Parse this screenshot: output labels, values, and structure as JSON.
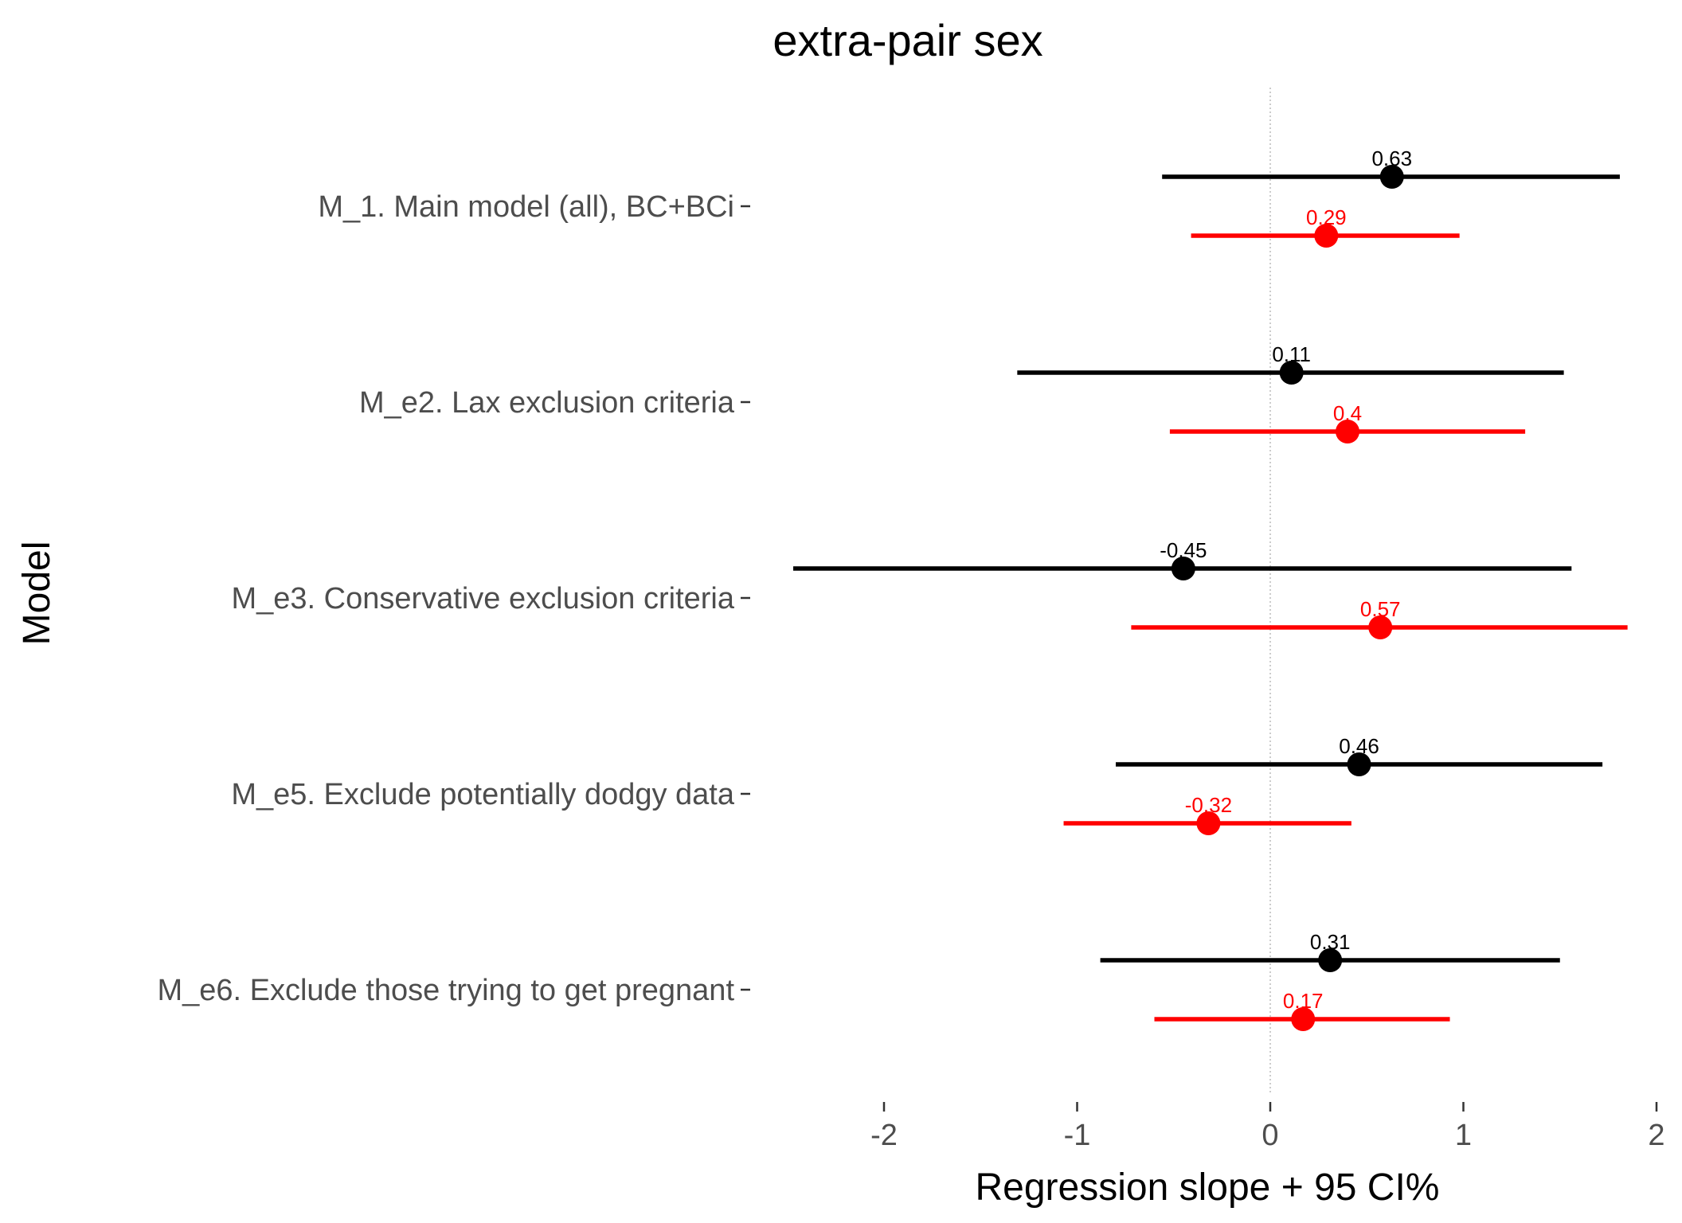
{
  "chart_data": {
    "type": "scatter",
    "subtype": "forest-plot (point estimate with 95% CI bars)",
    "title": "extra-pair sex",
    "xlabel": "Regression slope + 95 CI%",
    "ylabel": "Model",
    "xlim": [
      -2.55,
      2.0
    ],
    "x_ticks": [
      -2,
      -1,
      0,
      1,
      2
    ],
    "x_tick_labels": [
      "-2",
      "-1",
      "0",
      "1",
      "2"
    ],
    "reference_line_x": 0,
    "grid": false,
    "legend": "none",
    "categories": [
      "M_1. Main model (all), BC+BCi",
      "M_e2. Lax exclusion criteria",
      "M_e3. Conservative exclusion criteria",
      "M_e5. Exclude potentially dodgy data",
      "M_e6. Exclude those trying to get pregnant"
    ],
    "series": [
      {
        "color": "#000000",
        "estimates": [
          0.63,
          0.11,
          -0.45,
          0.46,
          0.31
        ],
        "lower": [
          -0.56,
          -1.31,
          -2.47,
          -0.8,
          -0.88
        ],
        "upper": [
          1.81,
          1.52,
          1.56,
          1.72,
          1.5
        ],
        "labels": [
          "0.63",
          "0.11",
          "-0.45",
          "0.46",
          "0.31"
        ]
      },
      {
        "color": "#ff0000",
        "estimates": [
          0.29,
          0.4,
          0.57,
          -0.32,
          0.17
        ],
        "lower": [
          -0.41,
          -0.52,
          -0.72,
          -1.07,
          -0.6
        ],
        "upper": [
          0.98,
          1.32,
          1.85,
          0.42,
          0.93
        ],
        "labels": [
          "0.29",
          "0.4",
          "0.57",
          "-0.32",
          "0.17"
        ]
      }
    ]
  }
}
